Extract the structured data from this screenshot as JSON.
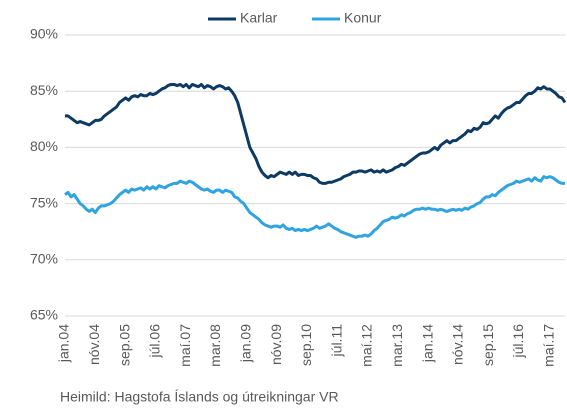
{
  "chart_data": {
    "type": "line",
    "source": "Heimild: Hagstofa Íslands og útreikningar VR",
    "categories": [
      "jan.04",
      null,
      null,
      null,
      null,
      null,
      null,
      null,
      null,
      null,
      "nóv.04",
      null,
      null,
      null,
      null,
      null,
      null,
      null,
      null,
      null,
      "sep.05",
      null,
      null,
      null,
      null,
      null,
      null,
      null,
      null,
      null,
      "júl.06",
      null,
      null,
      null,
      null,
      null,
      null,
      null,
      null,
      null,
      "maí.07",
      null,
      null,
      null,
      null,
      null,
      null,
      null,
      null,
      null,
      "mar.08",
      null,
      null,
      null,
      null,
      null,
      null,
      null,
      null,
      null,
      "jan.09",
      null,
      null,
      null,
      null,
      null,
      null,
      null,
      null,
      null,
      "nóv.09",
      null,
      null,
      null,
      null,
      null,
      null,
      null,
      null,
      null,
      "sep.10",
      null,
      null,
      null,
      null,
      null,
      null,
      null,
      null,
      null,
      "júl.11",
      null,
      null,
      null,
      null,
      null,
      null,
      null,
      null,
      null,
      "maí.12",
      null,
      null,
      null,
      null,
      null,
      null,
      null,
      null,
      null,
      "mar.13",
      null,
      null,
      null,
      null,
      null,
      null,
      null,
      null,
      null,
      "jan.14",
      null,
      null,
      null,
      null,
      null,
      null,
      null,
      null,
      null,
      "nóv.14",
      null,
      null,
      null,
      null,
      null,
      null,
      null,
      null,
      null,
      "sep.15",
      null,
      null,
      null,
      null,
      null,
      null,
      null,
      null,
      null,
      "júl.16",
      null,
      null,
      null,
      null,
      null,
      null,
      null,
      null,
      null,
      "maí.17",
      null,
      null,
      null,
      null,
      null
    ],
    "series": [
      {
        "name": "Karlar",
        "color": "#0d3a63",
        "values": [
          82.8,
          82.8,
          82.6,
          82.4,
          82.2,
          82.3,
          82.2,
          82.1,
          82.0,
          82.2,
          82.4,
          82.4,
          82.5,
          82.8,
          83.0,
          83.2,
          83.4,
          83.6,
          84.0,
          84.2,
          84.4,
          84.2,
          84.5,
          84.6,
          84.5,
          84.7,
          84.6,
          84.6,
          84.8,
          84.7,
          84.8,
          85.0,
          85.2,
          85.3,
          85.5,
          85.6,
          85.6,
          85.5,
          85.6,
          85.4,
          85.6,
          85.3,
          85.6,
          85.5,
          85.4,
          85.6,
          85.3,
          85.5,
          85.4,
          85.2,
          85.4,
          85.5,
          85.4,
          85.2,
          85.3,
          85.0,
          84.6,
          84.0,
          83.0,
          82.0,
          81.0,
          80.0,
          79.5,
          79.0,
          78.3,
          77.8,
          77.5,
          77.3,
          77.5,
          77.4,
          77.6,
          77.8,
          77.7,
          77.6,
          77.8,
          77.6,
          77.8,
          77.5,
          77.6,
          77.6,
          77.5,
          77.5,
          77.3,
          77.2,
          76.9,
          76.8,
          76.8,
          76.9,
          76.9,
          77.0,
          77.1,
          77.2,
          77.4,
          77.5,
          77.6,
          77.8,
          77.8,
          77.9,
          77.9,
          77.8,
          77.9,
          78.0,
          77.8,
          77.9,
          77.8,
          78.0,
          77.8,
          77.9,
          78.0,
          78.2,
          78.3,
          78.5,
          78.4,
          78.6,
          78.8,
          79.0,
          79.2,
          79.4,
          79.5,
          79.5,
          79.6,
          79.8,
          80.0,
          79.8,
          80.2,
          80.4,
          80.6,
          80.4,
          80.6,
          80.6,
          80.8,
          81.0,
          81.2,
          81.5,
          81.4,
          81.7,
          81.6,
          81.8,
          82.2,
          82.1,
          82.2,
          82.5,
          82.8,
          82.6,
          83.0,
          83.3,
          83.5,
          83.6,
          83.8,
          84.0,
          84.0,
          84.3,
          84.6,
          84.8,
          84.8,
          85.0,
          85.3,
          85.2,
          85.4,
          85.2,
          85.2,
          85.0,
          84.8,
          84.5,
          84.4,
          84.0
        ]
      },
      {
        "name": "Konur",
        "color": "#2fa4e0",
        "values": [
          75.8,
          76.0,
          75.6,
          75.8,
          75.4,
          75.0,
          74.8,
          74.5,
          74.3,
          74.5,
          74.2,
          74.6,
          74.8,
          74.8,
          74.9,
          75.0,
          75.2,
          75.5,
          75.8,
          76.0,
          76.2,
          76.0,
          76.3,
          76.2,
          76.3,
          76.4,
          76.2,
          76.5,
          76.3,
          76.5,
          76.3,
          76.6,
          76.5,
          76.4,
          76.6,
          76.7,
          76.8,
          76.8,
          77.0,
          76.9,
          76.8,
          77.0,
          76.9,
          76.7,
          76.5,
          76.3,
          76.2,
          76.3,
          76.1,
          76.0,
          76.2,
          76.2,
          76.0,
          76.2,
          76.1,
          76.0,
          75.6,
          75.5,
          75.2,
          75.0,
          74.6,
          74.2,
          74.0,
          73.8,
          73.6,
          73.3,
          73.1,
          73.0,
          72.9,
          73.0,
          73.0,
          72.9,
          73.1,
          72.8,
          72.7,
          72.8,
          72.6,
          72.7,
          72.6,
          72.7,
          72.6,
          72.7,
          72.8,
          73.0,
          72.8,
          72.9,
          73.0,
          73.2,
          73.0,
          72.8,
          72.7,
          72.5,
          72.4,
          72.3,
          72.2,
          72.1,
          72.0,
          72.1,
          72.1,
          72.2,
          72.1,
          72.3,
          72.6,
          72.8,
          73.1,
          73.4,
          73.5,
          73.6,
          73.8,
          73.7,
          73.8,
          74.0,
          73.9,
          74.1,
          74.2,
          74.4,
          74.5,
          74.5,
          74.6,
          74.5,
          74.6,
          74.5,
          74.5,
          74.4,
          74.5,
          74.4,
          74.3,
          74.4,
          74.5,
          74.4,
          74.5,
          74.4,
          74.6,
          74.5,
          74.7,
          74.8,
          75.0,
          75.1,
          75.4,
          75.6,
          75.6,
          75.8,
          75.7,
          76.0,
          76.2,
          76.4,
          76.6,
          76.7,
          76.8,
          77.0,
          76.9,
          77.0,
          77.1,
          77.2,
          77.0,
          77.3,
          77.1,
          77.0,
          77.4,
          77.3,
          77.4,
          77.3,
          77.1,
          76.9,
          76.8,
          76.8
        ]
      }
    ],
    "ylim": [
      65,
      90
    ],
    "yticks": [
      {
        "value": 65,
        "label": "65%"
      },
      {
        "value": 70,
        "label": "70%"
      },
      {
        "value": 75,
        "label": "75%"
      },
      {
        "value": 80,
        "label": "80%"
      },
      {
        "value": 85,
        "label": "85%"
      },
      {
        "value": 90,
        "label": "90%"
      }
    ],
    "grid": true,
    "legend": "top"
  }
}
